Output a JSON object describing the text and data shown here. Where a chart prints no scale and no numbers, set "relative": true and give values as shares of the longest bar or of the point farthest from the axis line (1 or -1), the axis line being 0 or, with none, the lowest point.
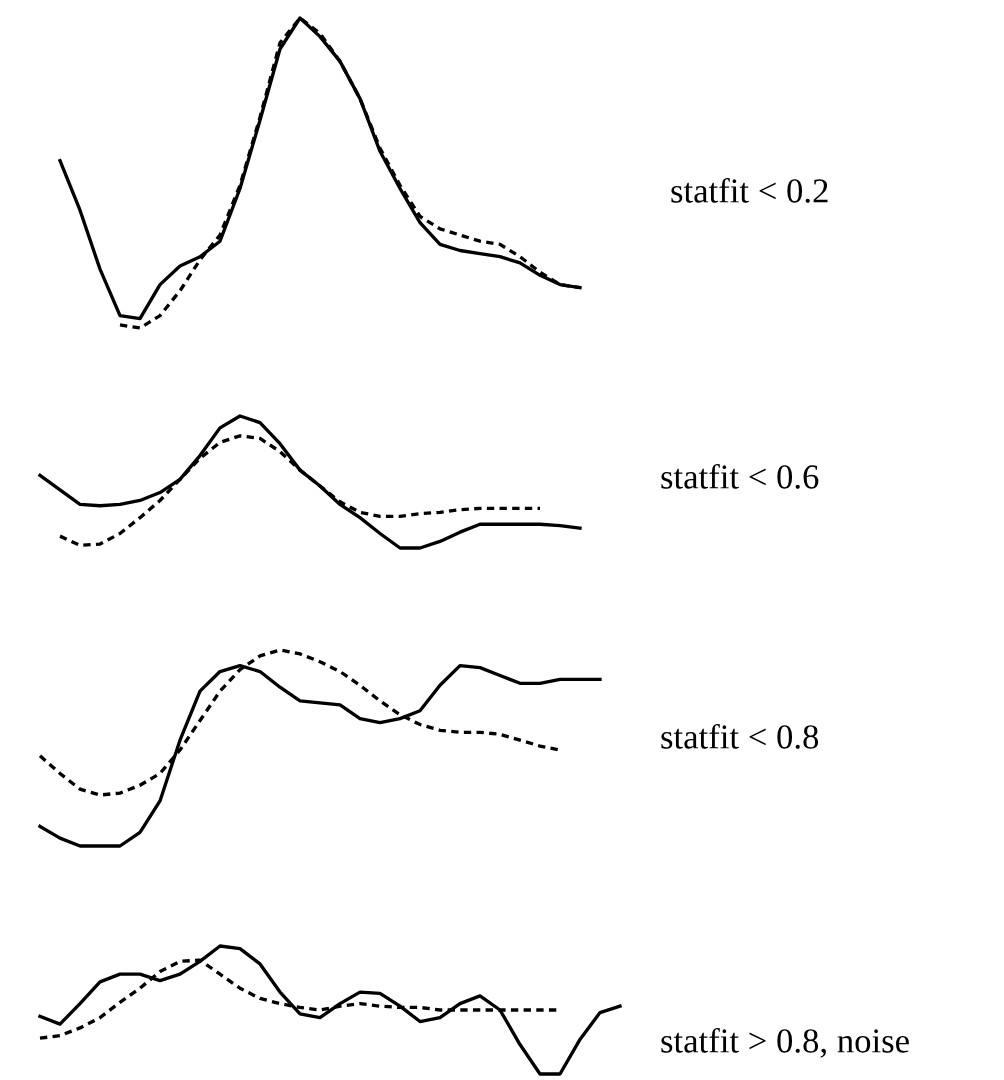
{
  "chart_data": [
    {
      "type": "line",
      "relative": true,
      "categories": [
        null,
        null,
        null,
        null,
        null,
        null,
        null,
        null,
        null,
        null,
        null,
        null,
        null,
        null,
        null,
        null,
        null,
        null,
        null,
        null,
        null,
        null,
        null,
        null,
        null,
        null,
        null
      ],
      "annotations": [
        "statfit < 0.2"
      ],
      "series": [
        {
          "color": "#000000",
          "line_style": "solid",
          "values": [
            0.54,
            0.38,
            0.19,
            0.04,
            0.03,
            0.14,
            0.2,
            0.23,
            0.28,
            0.45,
            0.67,
            0.9,
            1.0,
            0.94,
            0.86,
            0.74,
            0.57,
            0.45,
            0.34,
            0.27,
            0.25,
            0.24,
            0.23,
            0.21,
            0.17,
            0.14,
            0.13
          ]
        },
        {
          "color": "#000000",
          "line_style": "dashed",
          "values": [
            null,
            null,
            null,
            0.01,
            0,
            0.04,
            0.12,
            0.22,
            0.3,
            0.46,
            0.68,
            0.92,
            1.0,
            0.95,
            0.86,
            0.74,
            0.58,
            0.46,
            0.36,
            0.32,
            0.3,
            0.28,
            0.27,
            0.23,
            0.18,
            0.14,
            0.13
          ]
        }
      ]
    },
    {
      "type": "line",
      "relative": true,
      "categories": [
        null,
        null,
        null,
        null,
        null,
        null,
        null,
        null,
        null,
        null,
        null,
        null,
        null,
        null,
        null,
        null,
        null,
        null,
        null,
        null,
        null,
        null,
        null,
        null,
        null,
        null,
        null,
        null
      ],
      "annotations": [
        "statfit < 0.6"
      ],
      "series": [
        {
          "color": "#000000",
          "line_style": "solid",
          "values": [
            0.55,
            0.44,
            0.33,
            0.32,
            0.33,
            0.36,
            0.42,
            0.52,
            0.7,
            0.91,
            1.0,
            0.95,
            0.79,
            0.59,
            0.47,
            0.33,
            0.23,
            0.11,
            0,
            0,
            0.05,
            0.12,
            0.18,
            0.18,
            0.18,
            0.18,
            0.17,
            0.15
          ]
        },
        {
          "color": "#000000",
          "line_style": "dashed",
          "values": [
            null,
            0.09,
            0.02,
            0.03,
            0.11,
            0.23,
            0.36,
            0.52,
            0.68,
            0.8,
            0.85,
            0.83,
            0.73,
            0.59,
            0.47,
            0.35,
            0.27,
            0.24,
            0.24,
            0.26,
            0.27,
            0.29,
            0.3,
            0.3,
            0.3,
            0.3,
            null,
            null
          ]
        }
      ]
    },
    {
      "type": "line",
      "relative": true,
      "categories": [
        null,
        null,
        null,
        null,
        null,
        null,
        null,
        null,
        null,
        null,
        null,
        null,
        null,
        null,
        null,
        null,
        null,
        null,
        null,
        null,
        null,
        null,
        null,
        null,
        null,
        null,
        null,
        null,
        null
      ],
      "annotations": [
        "statfit < 0.8"
      ],
      "series": [
        {
          "color": "#000000",
          "line_style": "solid",
          "values": [
            0.1,
            0.04,
            0,
            0,
            0,
            0.07,
            0.23,
            0.54,
            0.79,
            0.89,
            0.92,
            0.89,
            0.81,
            0.74,
            0.73,
            0.72,
            0.65,
            0.63,
            0.65,
            0.69,
            0.82,
            0.92,
            0.91,
            0.87,
            0.83,
            0.83,
            0.85,
            0.85,
            0.85
          ]
        },
        {
          "color": "#000000",
          "line_style": "dashed",
          "values": [
            0.46,
            0.37,
            0.29,
            0.26,
            0.27,
            0.31,
            0.37,
            0.49,
            0.64,
            0.79,
            0.9,
            0.97,
            1.0,
            0.98,
            0.94,
            0.89,
            0.82,
            0.74,
            0.67,
            0.62,
            0.59,
            0.58,
            0.58,
            0.57,
            0.54,
            0.51,
            0.49,
            null,
            null
          ]
        }
      ]
    },
    {
      "type": "line",
      "relative": true,
      "categories": [
        null,
        null,
        null,
        null,
        null,
        null,
        null,
        null,
        null,
        null,
        null,
        null,
        null,
        null,
        null,
        null,
        null,
        null,
        null,
        null,
        null,
        null,
        null,
        null,
        null,
        null,
        null,
        null,
        null,
        null
      ],
      "annotations": [
        "statfit > 0.8, noise"
      ],
      "series": [
        {
          "color": "#000000",
          "line_style": "solid",
          "values": [
            0.45,
            0.39,
            0.55,
            0.72,
            0.78,
            0.78,
            0.73,
            0.78,
            0.88,
            1.0,
            0.98,
            0.86,
            0.64,
            0.47,
            0.44,
            0.55,
            0.64,
            0.63,
            0.53,
            0.41,
            0.44,
            0.55,
            0.61,
            0.5,
            0.23,
            0,
            0,
            0.27,
            0.48,
            0.53
          ]
        },
        {
          "color": "#000000",
          "line_style": "dashed",
          "values": [
            0.28,
            0.3,
            0.36,
            0.44,
            0.56,
            0.67,
            0.8,
            0.88,
            0.89,
            0.78,
            0.67,
            0.59,
            0.55,
            0.52,
            0.5,
            0.53,
            0.55,
            0.53,
            0.52,
            0.52,
            0.5,
            0.5,
            0.5,
            0.5,
            0.5,
            0.5,
            0.5,
            null,
            null,
            null
          ]
        }
      ]
    }
  ]
}
